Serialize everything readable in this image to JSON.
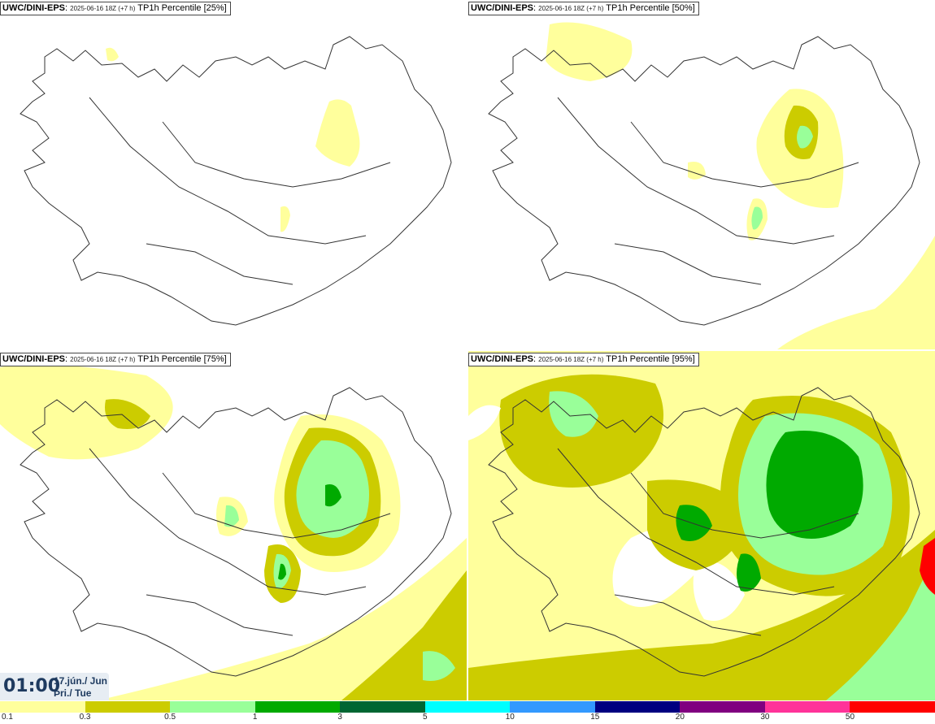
{
  "panels": [
    {
      "model": "UWC/DINI-EPS",
      "meta": "2025-06-16 18Z (+7 h)",
      "label": "TP1h Percentile [25%]"
    },
    {
      "model": "UWC/DINI-EPS",
      "meta": "2025-06-16 18Z (+7 h)",
      "label": "TP1h Percentile [50%]"
    },
    {
      "model": "UWC/DINI-EPS",
      "meta": "2025-06-16 18Z (+7 h)",
      "label": "TP1h Percentile [75%]"
    },
    {
      "model": "UWC/DINI-EPS",
      "meta": "2025-06-16 18Z (+7 h)",
      "label": "TP1h Percentile [95%]"
    }
  ],
  "clock": {
    "time": "01:00",
    "date_line1": "17.jún./ Jun",
    "date_line2": "Þri./ Tue"
  },
  "legend": {
    "colors": [
      "#ffff9c",
      "#cccc00",
      "#99ff99",
      "#00aa00",
      "#006633",
      "#00ffff",
      "#3399ff",
      "#000080",
      "#800080",
      "#ff3399",
      "#ff0000"
    ],
    "ticks": [
      "0.1",
      "0.3",
      "0.5",
      "1",
      "3",
      "5",
      "10",
      "15",
      "20",
      "30",
      "50"
    ]
  }
}
